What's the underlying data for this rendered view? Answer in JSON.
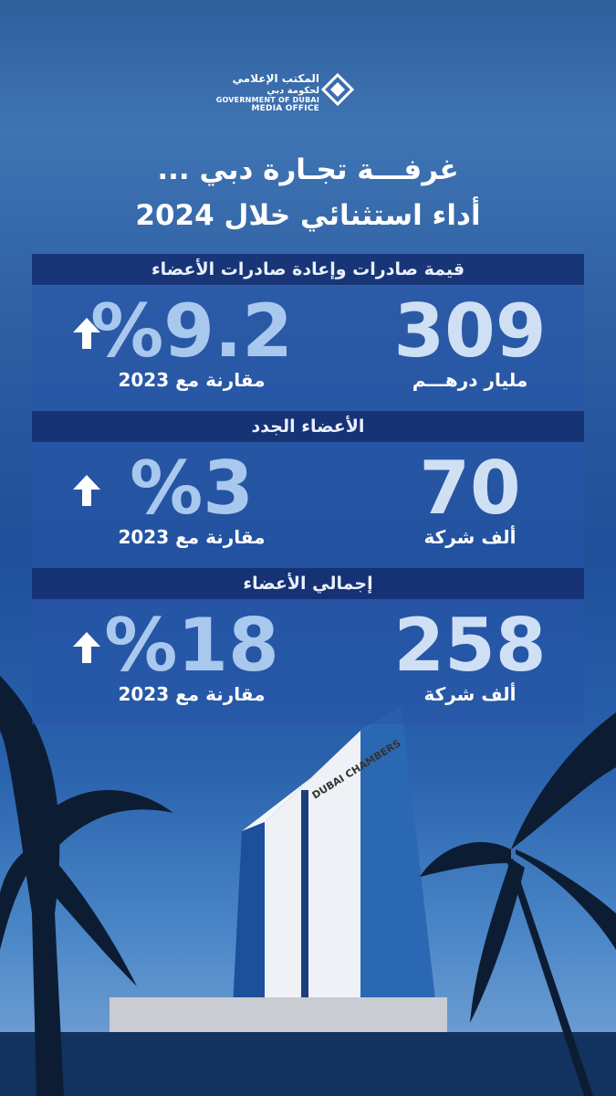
{
  "logo": {
    "arabic_line1": "المكتب الإعلامي",
    "arabic_line2": "لحكومة دبي",
    "english_line1": "GOVERNMENT OF DUBAI",
    "english_line2": "MEDIA OFFICE"
  },
  "title": {
    "line1": "غرفـــة تجـارة دبي ...",
    "line2": "أداء استثنائي خلال 2024"
  },
  "sections": [
    {
      "header": "قيمة صادرات وإعادة صادرات الأعضاء",
      "value": "309",
      "unit": "مليار درهـــم",
      "change": "%9.2",
      "comparison": "مقارنة مع 2023"
    },
    {
      "header": "الأعضاء الجدد",
      "value": "70",
      "unit": "ألف شركة",
      "change": "%3",
      "comparison": "مقارنة مع 2023"
    },
    {
      "header": "إجمالي الأعضاء",
      "value": "258",
      "unit": "ألف شركة",
      "change": "%18",
      "comparison": "مقارنة مع 2023"
    }
  ],
  "building_sign": "DUBAI CHAMBERS"
}
